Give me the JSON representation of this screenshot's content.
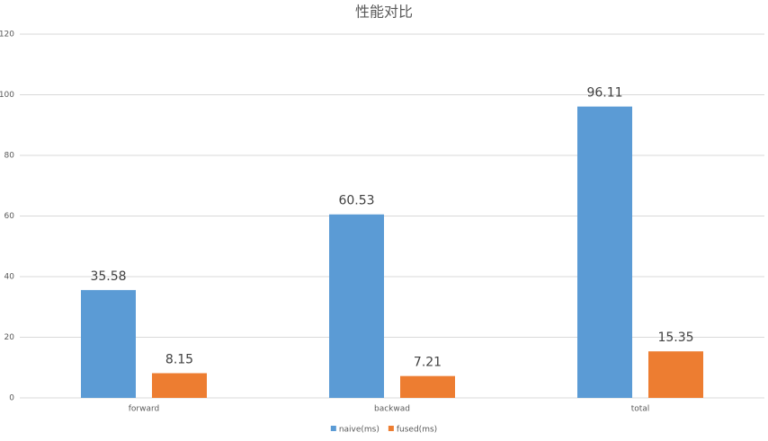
{
  "chart_data": {
    "type": "bar",
    "title": "性能对比",
    "categories": [
      "forward",
      "backwad",
      "total"
    ],
    "series": [
      {
        "name": "naive(ms)",
        "color": "#5b9bd5",
        "values": [
          35.58,
          60.53,
          96.11
        ]
      },
      {
        "name": "fused(ms)",
        "color": "#ed7d31",
        "values": [
          8.15,
          7.21,
          15.35
        ]
      }
    ],
    "ylim": [
      0,
      120
    ],
    "yticks": [
      0,
      20,
      40,
      60,
      80,
      100,
      120
    ],
    "grid": true,
    "legend": "bottom"
  }
}
